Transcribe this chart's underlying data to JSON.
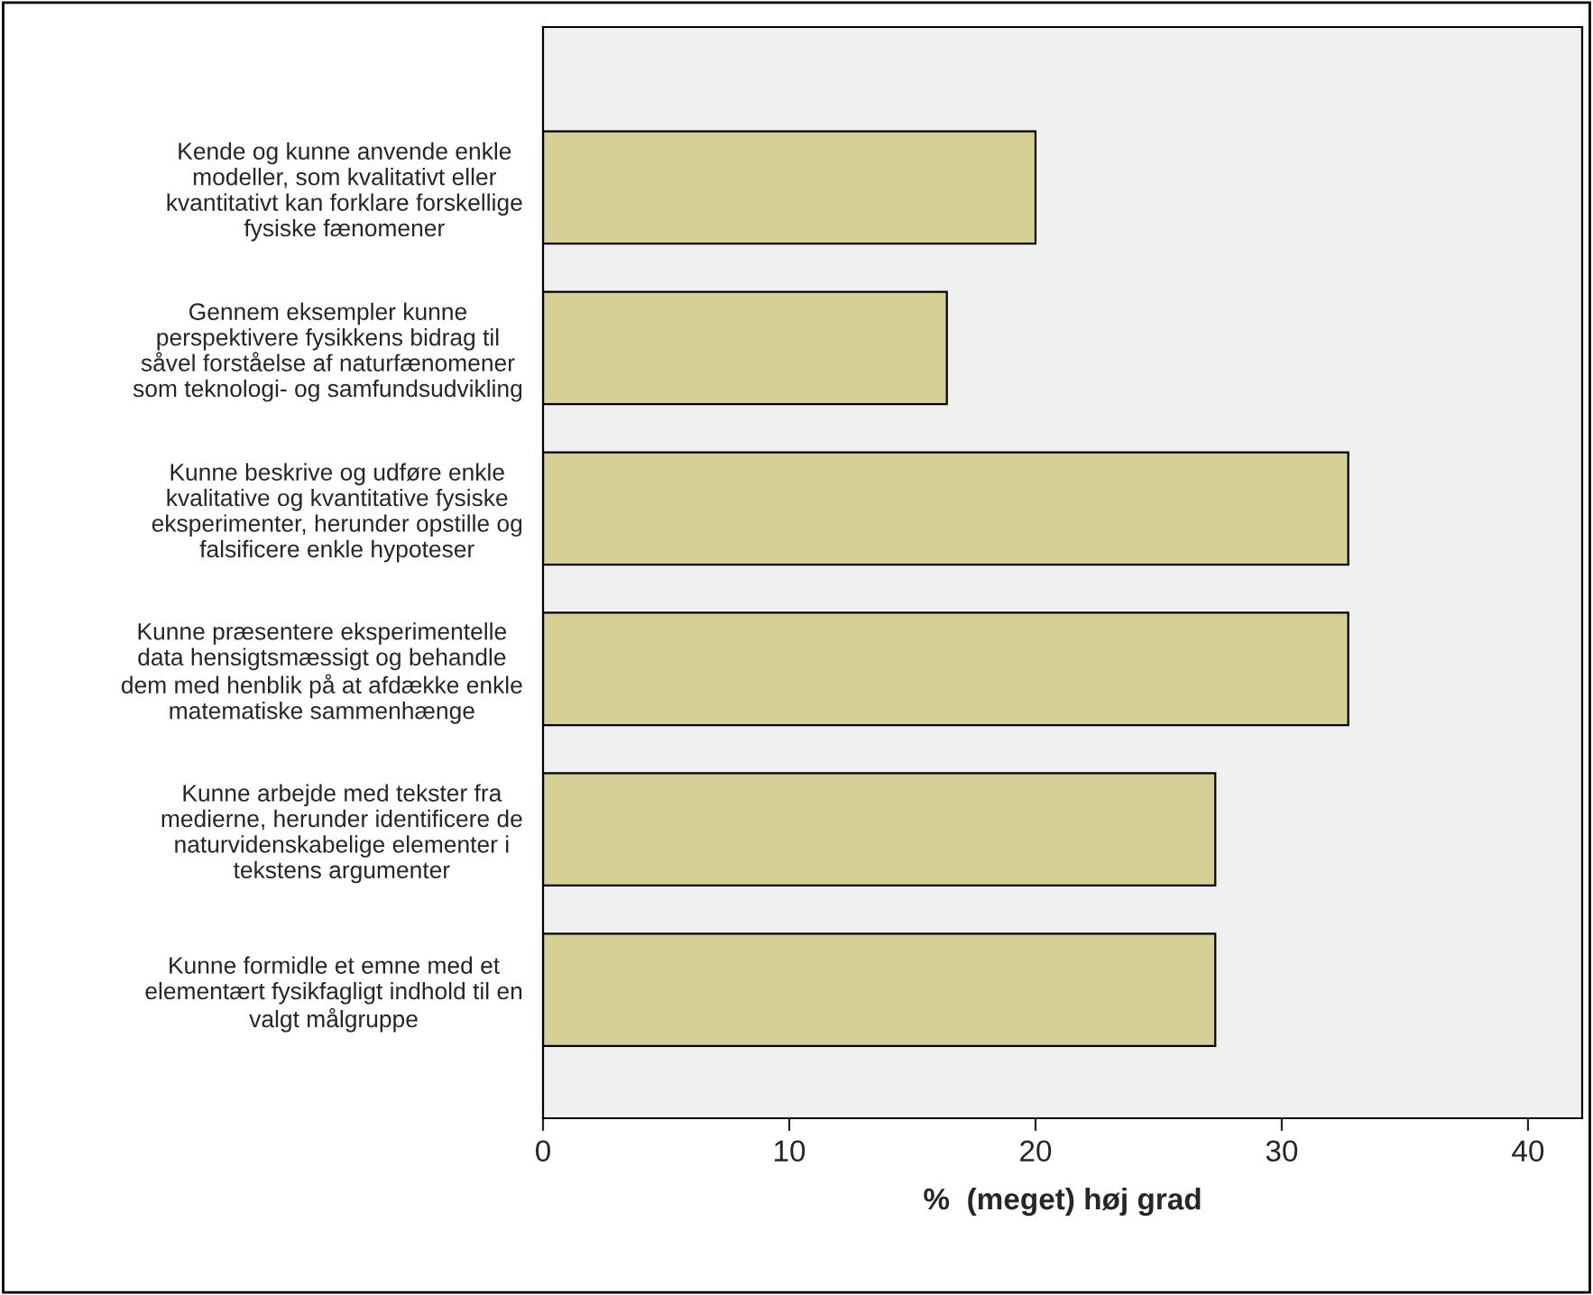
{
  "chart_data": {
    "type": "bar",
    "orientation": "horizontal",
    "xlabel": "%  (meget) høj grad",
    "categories": [
      "Kende og kunne anvende enkle\nmodeller, som kvalitativt eller\nkvantitativt kan forklare forskellige\nfysiske fænomener",
      "Gennem eksempler kunne\nperspektivere fysikkens bidrag til\nsåvel forståelse af naturfænomener\nsom teknologi- og samfundsudvikling",
      "Kunne beskrive og udføre enkle\nkvalitative og kvantitative fysiske\neksperimenter, herunder opstille og\nfalsificere enkle hypoteser",
      "Kunne præsentere eksperimentelle\ndata hensigtsmæssigt og behandle\ndem med henblik på at afdække enkle\nmatematiske sammenhænge",
      "Kunne arbejde med tekster fra\nmedierne, herunder identificere de\nnaturvidenskabelige elementer i\ntekstens argumenter",
      "Kunne formidle et emne med et\nelementært fysikfagligt indhold til en\nvalgt målgruppe"
    ],
    "values": [
      20.0,
      16.4,
      32.7,
      32.7,
      27.3,
      27.3
    ],
    "color": "#d4cf94",
    "xlim": [
      0,
      42.2
    ],
    "xticks": [
      0,
      10,
      20,
      30,
      40
    ],
    "grid": false,
    "legend": false
  }
}
